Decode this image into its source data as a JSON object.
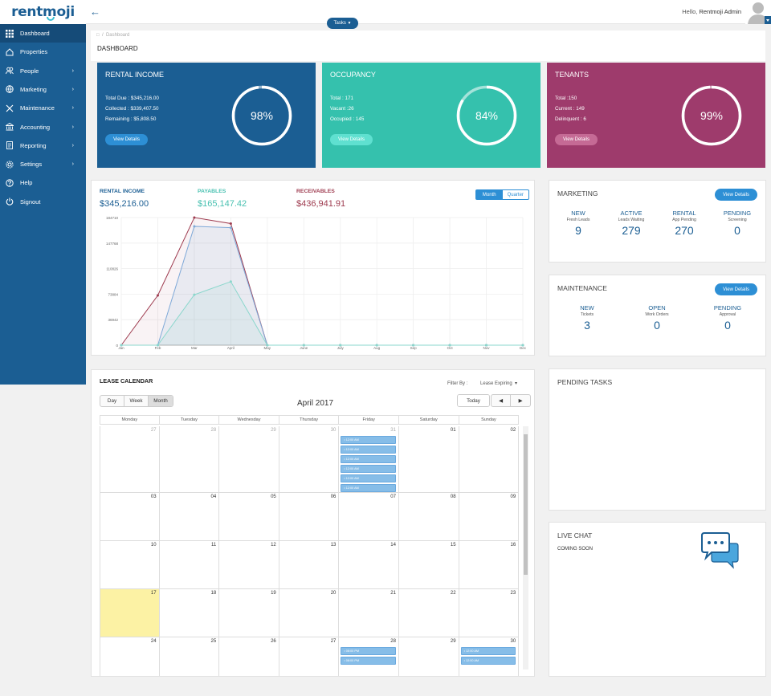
{
  "brand": {
    "logo": "rentmoji"
  },
  "sidebar": {
    "items": [
      {
        "label": "Dashboard",
        "icon": "grid-icon",
        "arrow": false,
        "active": true
      },
      {
        "label": "Properties",
        "icon": "home-icon",
        "arrow": false
      },
      {
        "label": "People",
        "icon": "people-icon",
        "arrow": true
      },
      {
        "label": "Marketing",
        "icon": "globe-icon",
        "arrow": true
      },
      {
        "label": "Maintenance",
        "icon": "tools-icon",
        "arrow": true
      },
      {
        "label": "Accounting",
        "icon": "bank-icon",
        "arrow": true
      },
      {
        "label": "Reporting",
        "icon": "report-icon",
        "arrow": true
      },
      {
        "label": "Settings",
        "icon": "gear-icon",
        "arrow": true
      },
      {
        "label": "Help",
        "icon": "help-icon",
        "arrow": false
      },
      {
        "label": "Signout",
        "icon": "power-icon",
        "arrow": false
      }
    ]
  },
  "header": {
    "tasks_label": "Tasks",
    "hello": "Hello,",
    "user": "Rentmoji Admin"
  },
  "breadcrumb": {
    "path": "Dashboard",
    "page_title": "DASHBOARD"
  },
  "kpis": [
    {
      "title": "RENTAL INCOME",
      "lines": [
        "Total Due : $345,216.00",
        "Collected : $339,407.50",
        "Remaining : $5,808.50"
      ],
      "percent": 98,
      "percent_label": "98%",
      "button": "View Details",
      "color": "#1b5e93",
      "btn_color": "#2d8fd5"
    },
    {
      "title": "OCCUPANCY",
      "lines": [
        "Total : 171",
        "Vacant :26",
        "Occupied : 145"
      ],
      "percent": 84,
      "percent_label": "84%",
      "button": "View Details",
      "color": "#35c1ad",
      "btn_color": "#5fe0d0"
    },
    {
      "title": "TENANTS",
      "lines": [
        "Total :150",
        "Current : 149",
        "Delinquent : 6"
      ],
      "percent": 99,
      "percent_label": "99%",
      "button": "View Details",
      "color": "#9e3b6c",
      "btn_color": "#c56a95"
    }
  ],
  "finance": {
    "rental_income": {
      "label": "RENTAL INCOME",
      "value": "$345,216.00",
      "color": "#1b5e93"
    },
    "payables": {
      "label": "PAYABLES",
      "value": "$165,147.42",
      "color": "#49c1b1"
    },
    "receivables": {
      "label": "RECEIVABLES",
      "value": "$436,941.91",
      "color": "#9e3b4f"
    },
    "toggle": {
      "month": "Month",
      "quarter": "Quarter"
    }
  },
  "chart_data": {
    "type": "line",
    "categories": [
      "Jan",
      "Feb",
      "Mar",
      "April",
      "May",
      "June",
      "July",
      "Aug",
      "Sep",
      "Oct",
      "Nov",
      "Dec"
    ],
    "y_ticks": [
      "184710",
      "147768",
      "110826",
      "73884",
      "36942",
      "0"
    ],
    "ylim": [
      0,
      184710
    ],
    "series": [
      {
        "color": "#9e3b4f",
        "values": [
          0,
          72000,
          184710,
          176000,
          0,
          0,
          0,
          0,
          0,
          0,
          0,
          0
        ]
      },
      {
        "color": "#7fa9d8",
        "values": [
          0,
          0,
          172000,
          170000,
          0,
          0,
          0,
          0,
          0,
          0,
          0,
          0
        ]
      },
      {
        "color": "#8ad7cc",
        "values": [
          0,
          0,
          73000,
          92000,
          0,
          0,
          0,
          0,
          0,
          0,
          0,
          0
        ]
      }
    ]
  },
  "calendar": {
    "title": "LEASE CALENDAR",
    "filter_label": "Filter By :",
    "filter_value": "Lease Expiring",
    "views": [
      "Day",
      "Week",
      "Month"
    ],
    "month_title": "April 2017",
    "today": "Today",
    "days": [
      "Monday",
      "Tuesday",
      "Wednesday",
      "Thursday",
      "Friday",
      "Saturday",
      "Sunday"
    ],
    "weeks": [
      [
        "27",
        "28",
        "29",
        "30",
        "31",
        "01",
        "02"
      ],
      [
        "03",
        "04",
        "05",
        "06",
        "07",
        "08",
        "09"
      ],
      [
        "10",
        "11",
        "12",
        "13",
        "14",
        "15",
        "16"
      ],
      [
        "17",
        "18",
        "19",
        "20",
        "21",
        "22",
        "23"
      ],
      [
        "24",
        "25",
        "26",
        "27",
        "28",
        "29",
        "30"
      ]
    ],
    "events": {
      "friday_week1": [
        "• 12:00 AM",
        "• 12:00 AM",
        "• 12:00 AM",
        "• 12:00 AM",
        "• 12:00 AM",
        "• 12:00 AM"
      ],
      "friday_week5": [
        "• 08:00 PM",
        "• 08:00 PM"
      ],
      "sunday_week5": [
        "• 12:00 AM",
        "• 12:00 AM"
      ]
    }
  },
  "marketing": {
    "title": "MARKETING",
    "button": "View Details",
    "stats": [
      {
        "label": "NEW",
        "sub": "Fresh Leads",
        "value": "9"
      },
      {
        "label": "ACTIVE",
        "sub": "Leads Waiting",
        "value": "279"
      },
      {
        "label": "RENTAL",
        "sub": "App Pending",
        "value": "270"
      },
      {
        "label": "PENDING",
        "sub": "Screening",
        "value": "0"
      }
    ]
  },
  "maintenance": {
    "title": "MAINTENANCE",
    "button": "View Details",
    "stats": [
      {
        "label": "NEW",
        "sub": "Tickets",
        "value": "3"
      },
      {
        "label": "OPEN",
        "sub": "Work Orders",
        "value": "0"
      },
      {
        "label": "PENDING",
        "sub": "Approval",
        "value": "0"
      }
    ]
  },
  "pending_tasks": {
    "title": "PENDING TASKS"
  },
  "live_chat": {
    "title": "LIVE CHAT",
    "subtitle": "COMING SOON"
  }
}
